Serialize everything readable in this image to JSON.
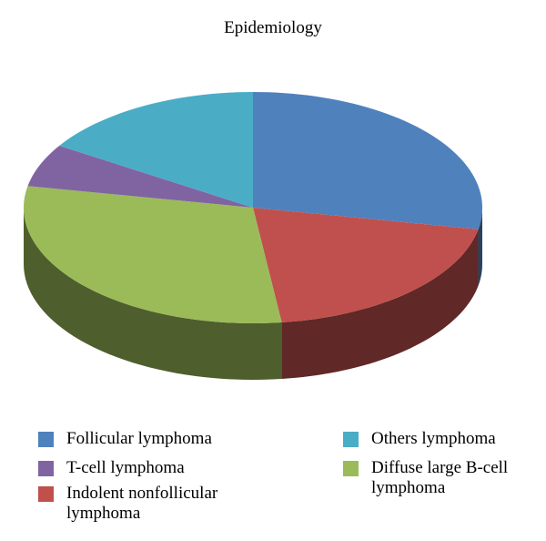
{
  "chart_data": {
    "type": "pie",
    "title": "Epidemiology",
    "categories": [
      "Follicular lymphoma",
      "Indolent nonfollicular lymphoma",
      "Diffuse large B-cell lymphoma",
      "T-cell lymphoma",
      "Others lymphoma"
    ],
    "values": [
      28,
      20,
      30,
      6,
      16
    ],
    "colors": [
      "#4f81bd",
      "#c0504d",
      "#9bbb59",
      "#8064a2",
      "#4bacc6"
    ]
  }
}
